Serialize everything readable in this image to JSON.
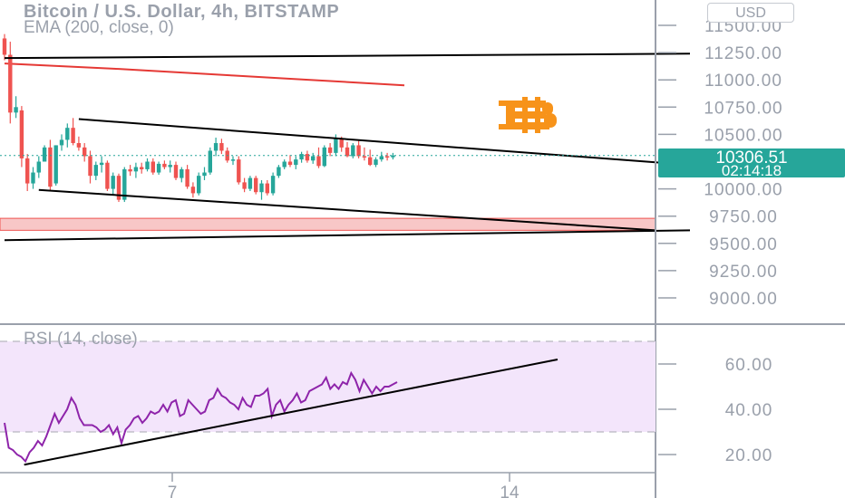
{
  "header": {
    "title": "Bitcoin / U.S. Dollar, 4h, BITSTAMP",
    "ema_label": "EMA (200, close, 0)",
    "currency_button": "USD",
    "rsi_label": "RSI (14, close)"
  },
  "price_tag": {
    "price": "10306.51",
    "countdown": "02:14:18"
  },
  "colors": {
    "up": "#26a69a",
    "down": "#ef5350",
    "ema": "#e53935",
    "rsi_line": "#8e24aa",
    "rsi_band": "#f3e5fb",
    "support_zone": "#f8c7c7",
    "price_tag_bg": "#26a69a",
    "btc_logo": "#f7931a"
  },
  "icons": {
    "logo": "bitcoin-logo-icon"
  },
  "chart_data": [
    {
      "type": "candlestick",
      "y_axis_ticks": [
        "11500.00",
        "11250.00",
        "11000.00",
        "10750.00",
        "10500.00",
        "10000.00",
        "9750.00",
        "9500.00",
        "9250.00",
        "9000.00"
      ],
      "y_tick_values": [
        11500,
        11250,
        11000,
        10750,
        10500,
        10000,
        9750,
        9500,
        9250,
        9000
      ],
      "x_axis_ticks": [
        "7",
        "14"
      ],
      "ylim": [
        8850,
        11750
      ],
      "last_price": 10306.51,
      "candles": [
        [
          11380,
          11420,
          11180,
          11230
        ],
        [
          11230,
          11350,
          10600,
          10700
        ],
        [
          10700,
          10850,
          10650,
          10750
        ],
        [
          10720,
          10760,
          10200,
          10280
        ],
        [
          10280,
          10320,
          9980,
          10050
        ],
        [
          10050,
          10200,
          10000,
          10150
        ],
        [
          10150,
          10300,
          10100,
          10250
        ],
        [
          10250,
          10400,
          10250,
          10380
        ],
        [
          10380,
          10450,
          9980,
          10020
        ],
        [
          10050,
          10400,
          10030,
          10400
        ],
        [
          10400,
          10500,
          10350,
          10450
        ],
        [
          10450,
          10600,
          10380,
          10560
        ],
        [
          10560,
          10650,
          10400,
          10420
        ],
        [
          10420,
          10480,
          10350,
          10380
        ],
        [
          10380,
          10420,
          10250,
          10300
        ],
        [
          10300,
          10350,
          10050,
          10120
        ],
        [
          10120,
          10250,
          10080,
          10220
        ],
        [
          10220,
          10300,
          10150,
          10240
        ],
        [
          10240,
          10260,
          9980,
          10000
        ],
        [
          10000,
          10150,
          9950,
          10120
        ],
        [
          10120,
          10140,
          9880,
          9900
        ],
        [
          9900,
          10200,
          9880,
          10180
        ],
        [
          10180,
          10220,
          10120,
          10160
        ],
        [
          10160,
          10240,
          10100,
          10200
        ],
        [
          10200,
          10240,
          10140,
          10180
        ],
        [
          10180,
          10280,
          10160,
          10250
        ],
        [
          10250,
          10280,
          10130,
          10150
        ],
        [
          10150,
          10250,
          10130,
          10230
        ],
        [
          10230,
          10260,
          10180,
          10200
        ],
        [
          10200,
          10260,
          10150,
          10220
        ],
        [
          10220,
          10250,
          10080,
          10100
        ],
        [
          10100,
          10200,
          10060,
          10180
        ],
        [
          10180,
          10220,
          10000,
          10020
        ],
        [
          10020,
          10060,
          9920,
          9960
        ],
        [
          9960,
          10150,
          9940,
          10120
        ],
        [
          10120,
          10200,
          10080,
          10150
        ],
        [
          10150,
          10380,
          10130,
          10350
        ],
        [
          10350,
          10470,
          10300,
          10420
        ],
        [
          10420,
          10460,
          10320,
          10350
        ],
        [
          10350,
          10380,
          10240,
          10260
        ],
        [
          10260,
          10300,
          10220,
          10270
        ],
        [
          10270,
          10300,
          10040,
          10060
        ],
        [
          10060,
          10100,
          9970,
          10000
        ],
        [
          10000,
          10120,
          9980,
          10100
        ],
        [
          10100,
          10120,
          9950,
          9970
        ],
        [
          9970,
          10080,
          9900,
          10050
        ],
        [
          10050,
          10080,
          9940,
          9960
        ],
        [
          9960,
          10150,
          9940,
          10120
        ],
        [
          10120,
          10220,
          10100,
          10200
        ],
        [
          10200,
          10270,
          10180,
          10250
        ],
        [
          10250,
          10310,
          10200,
          10220
        ],
        [
          10220,
          10300,
          10180,
          10270
        ],
        [
          10270,
          10340,
          10240,
          10320
        ],
        [
          10320,
          10350,
          10240,
          10260
        ],
        [
          10260,
          10330,
          10230,
          10300
        ],
        [
          10300,
          10380,
          10190,
          10210
        ],
        [
          10210,
          10400,
          10200,
          10380
        ],
        [
          10380,
          10420,
          10300,
          10330
        ],
        [
          10330,
          10500,
          10300,
          10460
        ],
        [
          10460,
          10480,
          10340,
          10380
        ],
        [
          10380,
          10430,
          10290,
          10300
        ],
        [
          10300,
          10420,
          10280,
          10400
        ],
        [
          10400,
          10440,
          10280,
          10300
        ],
        [
          10300,
          10380,
          10260,
          10290
        ],
        [
          10290,
          10360,
          10210,
          10220
        ],
        [
          10220,
          10290,
          10200,
          10270
        ],
        [
          10270,
          10340,
          10250,
          10300
        ],
        [
          10300,
          10330,
          10260,
          10290
        ],
        [
          10290,
          10330,
          10270,
          10306.51
        ]
      ],
      "ema": [
        11150,
        11125,
        11100,
        11070,
        11040,
        11010,
        10980,
        10950
      ],
      "support_zone": [
        9620,
        9730
      ],
      "trendlines": [
        {
          "name": "resistance",
          "x": [
            0,
            120
          ],
          "y": [
            11200,
            11240
          ]
        },
        {
          "name": "channel-top",
          "x": [
            13,
            120
          ],
          "y": [
            10640,
            10220
          ]
        },
        {
          "name": "channel-bottom",
          "x": [
            6,
            114
          ],
          "y": [
            9990,
            9620
          ]
        },
        {
          "name": "lower-support",
          "x": [
            0,
            120
          ],
          "y": [
            9530,
            9620
          ]
        }
      ]
    },
    {
      "type": "line",
      "y_axis_ticks": [
        "60.00",
        "40.00",
        "20.00"
      ],
      "y_tick_values": [
        60,
        40,
        20
      ],
      "ylim": [
        10,
        74
      ],
      "band": [
        30,
        70
      ],
      "rsi": [
        34,
        23,
        22,
        20,
        19,
        17,
        21,
        23,
        26,
        24,
        28,
        33,
        38,
        34,
        37,
        40,
        45,
        42,
        36,
        33,
        33,
        33,
        32,
        30,
        31,
        33,
        29,
        32,
        25,
        31,
        33,
        36,
        37,
        34,
        36,
        39,
        38,
        39,
        42,
        39,
        43,
        44,
        37,
        38,
        44,
        42,
        40,
        38,
        39,
        44,
        45,
        49,
        46,
        45,
        43,
        42,
        40,
        45,
        42,
        41,
        46,
        46,
        47,
        49,
        37,
        42,
        44,
        39,
        42,
        44,
        47,
        43,
        44,
        48,
        49,
        50,
        51,
        54,
        49,
        51,
        49,
        52,
        51,
        56,
        53,
        48,
        53,
        50,
        47,
        50,
        48,
        50,
        50,
        51,
        52
      ],
      "trendlines": [
        {
          "name": "rsi-support",
          "x": [
            5,
            100
          ],
          "y": [
            15.5,
            62
          ]
        }
      ]
    }
  ]
}
